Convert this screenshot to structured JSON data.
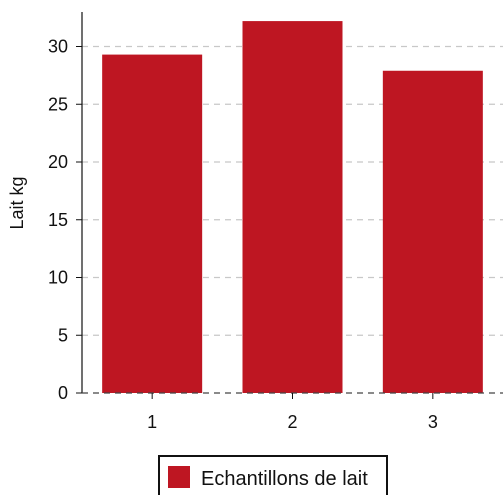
{
  "chart_data": {
    "type": "bar",
    "categories": [
      "1",
      "2",
      "3"
    ],
    "series": [
      {
        "name": "Echantillons de lait",
        "values": [
          29.3,
          32.2,
          27.9
        ],
        "color": "#be1622"
      }
    ],
    "xlabel": "",
    "ylabel": "Lait kg",
    "ylim": [
      0,
      33
    ],
    "yticks": [
      "0",
      "5",
      "10",
      "15",
      "20",
      "25",
      "30"
    ],
    "grid": "horizontal dashed",
    "legend_position": "bottom"
  }
}
